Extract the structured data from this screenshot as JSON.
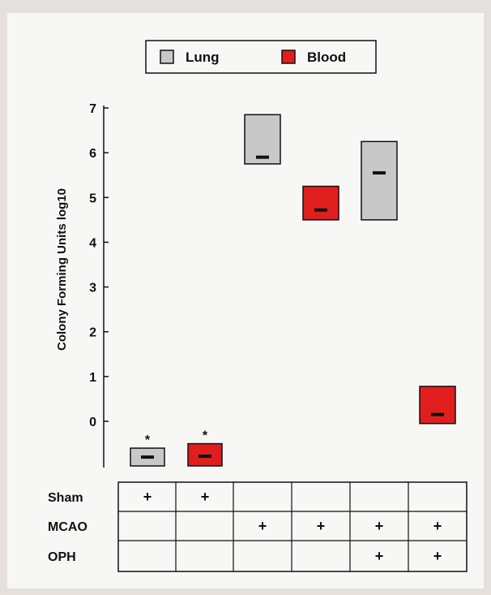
{
  "chart_data": {
    "type": "box",
    "ylabel": "Colony Forming Units  log10",
    "y_ticks": [
      "7",
      "6",
      "5",
      "4",
      "3",
      "2",
      "1",
      "0"
    ],
    "ylim": [
      -1.0,
      7.0
    ],
    "legend": {
      "placement": "top",
      "entries": [
        "Lung",
        "Blood"
      ]
    },
    "colors": {
      "Lung": "#c8c8c8",
      "Blood": "#e01e1e"
    },
    "groups": [
      {
        "series": "Lung",
        "low": -1.0,
        "high": -0.6,
        "median": -0.8,
        "marker": "*"
      },
      {
        "series": "Blood",
        "low": -1.0,
        "high": -0.5,
        "median": -0.78,
        "marker": "*"
      },
      {
        "series": "Lung",
        "low": 5.75,
        "high": 6.85,
        "median": 5.9,
        "marker": ""
      },
      {
        "series": "Blood",
        "low": 4.5,
        "high": 5.25,
        "median": 4.72,
        "marker": ""
      },
      {
        "series": "Lung",
        "low": 4.5,
        "high": 6.25,
        "median": 5.55,
        "marker": ""
      },
      {
        "series": "Blood",
        "low": -0.05,
        "high": 0.78,
        "median": 0.15,
        "marker": ""
      }
    ],
    "conditions": {
      "rows": [
        "Sham",
        "MCAO",
        "OPH"
      ],
      "marks": [
        [
          "+",
          "+",
          "",
          "",
          "",
          ""
        ],
        [
          "",
          "",
          "+",
          "+",
          "+",
          "+"
        ],
        [
          "",
          "",
          "",
          "",
          "+",
          "+"
        ]
      ]
    }
  }
}
